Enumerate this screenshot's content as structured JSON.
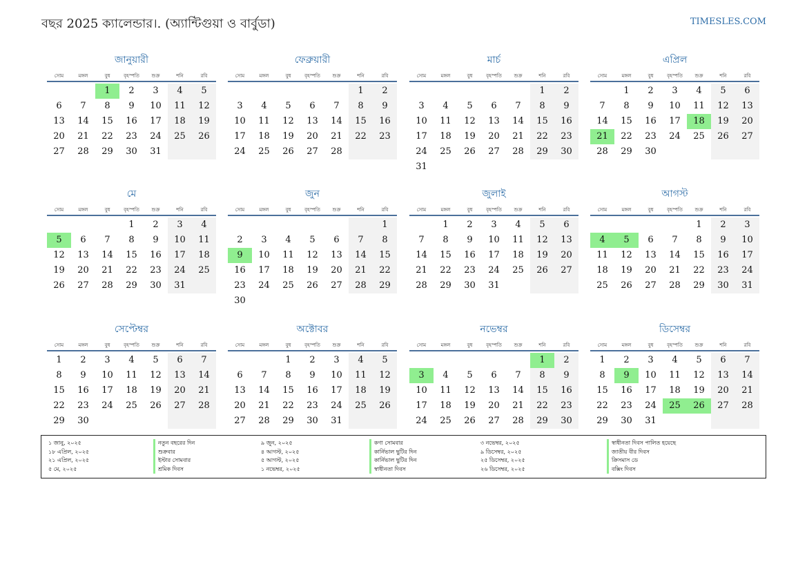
{
  "header": {
    "title": "বছর 2025 ক্যালেন্ডার।. (অ্যান্টিগুয়া ও বার্বুডা)",
    "site": "TIMESLES.COM"
  },
  "weekdays": [
    "সোম",
    "মঙ্গল",
    "বুধ",
    "বৃহস্পতি",
    "শুক্র",
    "শনি",
    "রবি"
  ],
  "colors": {
    "accent": "#2f6ea8",
    "holiday": "#90ee90",
    "weekend": "#f2f2f2",
    "rule": "#4a6f9a"
  },
  "months": [
    {
      "name": "জানুয়ারী",
      "offset": 2,
      "days": 31,
      "holidays": [
        1
      ]
    },
    {
      "name": "ফেব্রুয়ারী",
      "offset": 5,
      "days": 28,
      "holidays": []
    },
    {
      "name": "মার্চ",
      "offset": 5,
      "days": 31,
      "holidays": []
    },
    {
      "name": "এপ্রিল",
      "offset": 1,
      "days": 30,
      "holidays": [
        18,
        21
      ]
    },
    {
      "name": "মে",
      "offset": 3,
      "days": 31,
      "holidays": [
        5
      ]
    },
    {
      "name": "জুন",
      "offset": 6,
      "days": 30,
      "holidays": [
        9
      ]
    },
    {
      "name": "জুলাই",
      "offset": 1,
      "days": 31,
      "holidays": []
    },
    {
      "name": "আগস্ট",
      "offset": 4,
      "days": 31,
      "holidays": [
        4,
        5
      ]
    },
    {
      "name": "সেপ্টেম্বর",
      "offset": 0,
      "days": 30,
      "holidays": []
    },
    {
      "name": "অক্টোবর",
      "offset": 2,
      "days": 31,
      "holidays": []
    },
    {
      "name": "নভেম্বর",
      "offset": 5,
      "days": 30,
      "holidays": [
        1,
        3
      ]
    },
    {
      "name": "ডিসেম্বর",
      "offset": 0,
      "days": 31,
      "holidays": [
        9,
        25,
        26
      ]
    }
  ],
  "legend": [
    {
      "date": "১ জানু, ২০২৫",
      "name": "নতুন বছরের দিন"
    },
    {
      "date": "১৮ এপ্রিল, ২০২৫",
      "name": "শুক্রবার"
    },
    {
      "date": "২১ এপ্রিল, ২০২৫",
      "name": "ইস্টার সোমবার"
    },
    {
      "date": "৫ মে, ২০২৫",
      "name": "শ্রমিক দিবস"
    },
    {
      "date": "৯ জুন, ২০২৫",
      "name": "কণা সোমবার"
    },
    {
      "date": "৪ আগস্ট, ২০২৫",
      "name": "কার্নিভাল ছুটির দিন"
    },
    {
      "date": "৫ আগস্ট, ২০২৫",
      "name": "কার্নিভাল ছুটির দিন"
    },
    {
      "date": "১ নভেম্বর, ২০২৫",
      "name": "স্বাধীনতা দিবস"
    },
    {
      "date": "৩ নভেম্বর, ২০২৫",
      "name": "স্বাধীনতা দিবস পালিত হয়েছে"
    },
    {
      "date": "৯ ডিসেম্বর, ২০২৫",
      "name": "জাতীয় বীর দিবস"
    },
    {
      "date": "২৫ ডিসেম্বর, ২০২৫",
      "name": "ক্রিসমাস ডে"
    },
    {
      "date": "২৬ ডিসেম্বর, ২০২৫",
      "name": "বক্সিং দিবস"
    }
  ]
}
